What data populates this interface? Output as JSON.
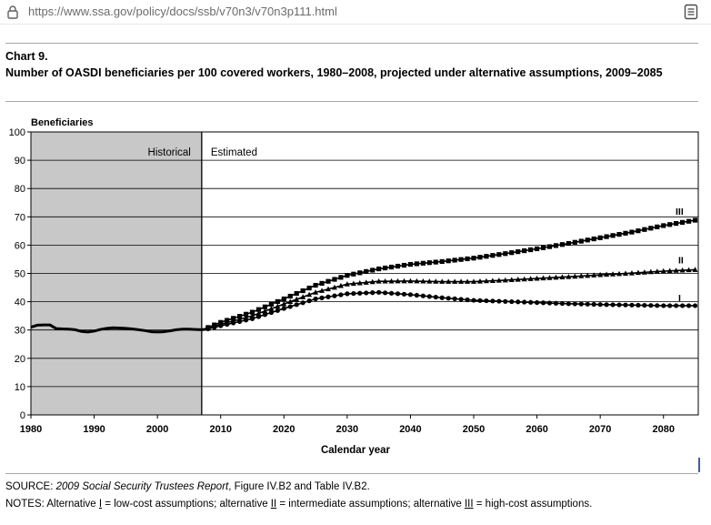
{
  "browser": {
    "url": "https://www.ssa.gov/policy/docs/ssb/v70n3/v70n3p111.html",
    "lock_icon": "lock-icon",
    "reader_icon": "reader-view-icon"
  },
  "header": {
    "chart_number": "Chart 9.",
    "title": "Number of OASDI beneficiaries per 100 covered workers, 1980–2008, projected under alternative assumptions, 2009–2085"
  },
  "chart_data": {
    "type": "line",
    "ylabel": "Beneficiaries",
    "xlabel": "Calendar year",
    "ylim": [
      0,
      100
    ],
    "xlim": [
      1980,
      2085.5
    ],
    "yticks": [
      0,
      10,
      20,
      30,
      40,
      50,
      60,
      70,
      80,
      90,
      100
    ],
    "xticks": [
      1980,
      1990,
      2000,
      2010,
      2020,
      2030,
      2040,
      2050,
      2060,
      2070,
      2080
    ],
    "grid": "horizontal",
    "historical_label": "Historical",
    "estimated_label": "Estimated",
    "divider_year": 2007,
    "historical": {
      "x": [
        1980,
        1981,
        1982,
        1983,
        1984,
        1985,
        1986,
        1987,
        1988,
        1989,
        1990,
        1991,
        1992,
        1993,
        1994,
        1995,
        1996,
        1997,
        1998,
        1999,
        2000,
        2001,
        2002,
        2003,
        2004,
        2005,
        2006,
        2007,
        2008
      ],
      "y": [
        31.0,
        31.7,
        31.8,
        31.8,
        30.5,
        30.4,
        30.3,
        30.1,
        29.5,
        29.3,
        29.6,
        30.2,
        30.6,
        30.8,
        30.7,
        30.6,
        30.4,
        30.1,
        29.8,
        29.4,
        29.3,
        29.4,
        29.7,
        30.1,
        30.3,
        30.3,
        30.2,
        30.1,
        30.4
      ]
    },
    "series": [
      {
        "name": "I",
        "marker": "circle",
        "x": [
          2008,
          2010,
          2015,
          2020,
          2025,
          2030,
          2035,
          2040,
          2045,
          2050,
          2055,
          2060,
          2065,
          2070,
          2075,
          2080,
          2085
        ],
        "y": [
          30.4,
          31.5,
          34.0,
          37.6,
          41.0,
          42.8,
          43.3,
          42.5,
          41.4,
          40.5,
          40.1,
          39.7,
          39.3,
          39.0,
          38.8,
          38.6,
          38.6
        ]
      },
      {
        "name": "II",
        "marker": "triangle",
        "x": [
          2008,
          2010,
          2015,
          2020,
          2025,
          2030,
          2035,
          2040,
          2045,
          2050,
          2055,
          2060,
          2065,
          2070,
          2075,
          2080,
          2085
        ],
        "y": [
          30.6,
          32.0,
          35.0,
          39.2,
          43.3,
          46.2,
          47.2,
          47.3,
          47.1,
          47.1,
          47.6,
          48.2,
          48.8,
          49.5,
          50.1,
          50.8,
          51.3
        ]
      },
      {
        "name": "III",
        "marker": "square",
        "x": [
          2008,
          2010,
          2015,
          2020,
          2025,
          2030,
          2035,
          2040,
          2045,
          2050,
          2055,
          2060,
          2065,
          2070,
          2075,
          2080,
          2085
        ],
        "y": [
          30.9,
          32.7,
          36.3,
          41.0,
          45.8,
          49.3,
          51.6,
          53.2,
          54.2,
          55.4,
          57.0,
          58.7,
          60.6,
          62.6,
          64.6,
          66.9,
          68.8
        ]
      }
    ]
  },
  "footer": {
    "source_prefix": "SOURCE: ",
    "source_title": "2009 Social Security Trustees Report",
    "source_suffix": ", Figure IV.B2 and Table IV.B2.",
    "notes_1": "NOTES: Alternative ",
    "alt_1": "I",
    "notes_2": " = low-cost assumptions; alternative ",
    "alt_2": "II",
    "notes_3": " = intermediate assumptions; alternative ",
    "alt_3": "III",
    "notes_4": " = high-cost assumptions."
  }
}
